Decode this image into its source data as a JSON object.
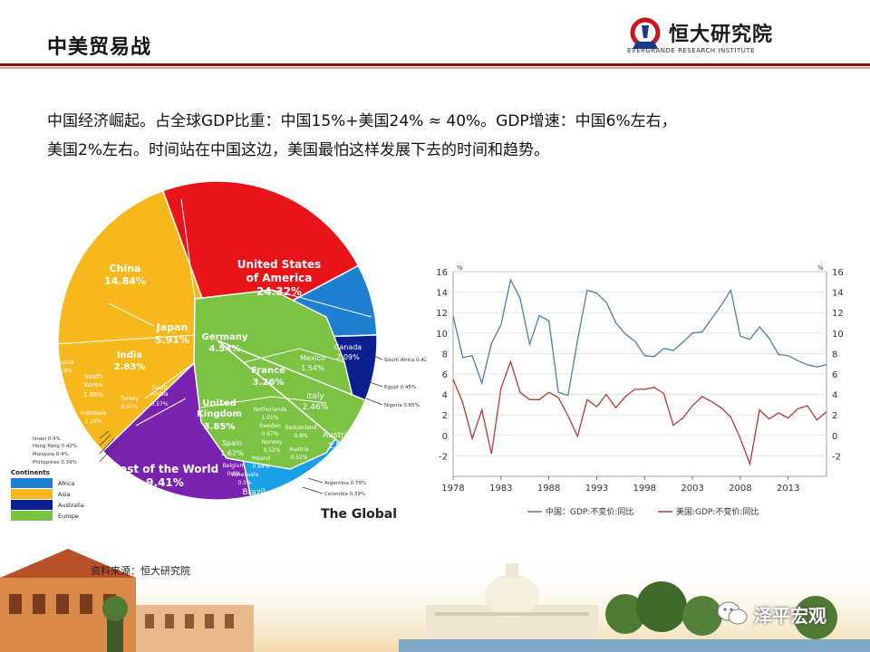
{
  "header": {
    "title": "中美贸易战",
    "logo_cn": "恒大研究院",
    "logo_en": "EVERGRANDE RESEARCH INSTITUTE"
  },
  "summary": {
    "line1": "中国经济崛起。占全球GDP比重：中国15%+美国24%  ≈ 40%。GDP增速：中国6%左右，",
    "line2": "美国2%左右。时间站在中国这边，美国最怕这样发展下去的时间和趋势。"
  },
  "footer": {
    "source": "资料来源：恒大研究院",
    "wechat": "泽平宏观"
  },
  "colors": {
    "accent_dark_red": "#7b1a12",
    "asia": "#f6b81a",
    "america": "#e8141a",
    "europe": "#7cc243",
    "australia": "#0b1f8f",
    "africa": "#1f7fd1",
    "rest": "#7a22b0",
    "china_line": "#4c7fa3",
    "us_line": "#b23a3a"
  },
  "chart_data": [
    {
      "type": "pie",
      "title": "The Global",
      "legend_title": "Continents",
      "legend": [
        "Africa",
        "Asia",
        "Australia",
        "Europe"
      ],
      "slices": [
        {
          "label": "United States of America",
          "value": "24.32%",
          "region": "america"
        },
        {
          "label": "Canada",
          "value": "2.09%",
          "region": "america"
        },
        {
          "label": "Mexico",
          "value": "1.54%",
          "region": "america"
        },
        {
          "label": "China",
          "value": "14.84%",
          "region": "asia"
        },
        {
          "label": "Japan",
          "value": "5.91%",
          "region": "asia"
        },
        {
          "label": "India",
          "value": "2.83%",
          "region": "asia"
        },
        {
          "label": "South Korea",
          "value": "1.86%",
          "region": "asia"
        },
        {
          "label": "Turkey",
          "value": "0.97%",
          "region": "asia"
        },
        {
          "label": "Indonesia",
          "value": "1.16%",
          "region": "asia"
        },
        {
          "label": "Russia",
          "value": "1.8%",
          "region": "asia"
        },
        {
          "label": "Saudi Arabia",
          "value": "0.57%",
          "region": "asia"
        },
        {
          "label": "Germany",
          "value": "4.54%",
          "region": "europe"
        },
        {
          "label": "France",
          "value": "3.26%",
          "region": "europe"
        },
        {
          "label": "United Kingdom",
          "value": "3.85%",
          "region": "europe"
        },
        {
          "label": "Italy",
          "value": "2.46%",
          "region": "europe"
        },
        {
          "label": "Spain",
          "value": "1.62%",
          "region": "europe"
        },
        {
          "label": "Netherlands",
          "value": "1.01%",
          "region": "europe"
        },
        {
          "label": "Switzerland",
          "value": "0.9%",
          "region": "europe"
        },
        {
          "label": "Sweden",
          "value": "0.67%",
          "region": "europe"
        },
        {
          "label": "Norway",
          "value": "0.52%",
          "region": "europe"
        },
        {
          "label": "Poland",
          "value": "0.64%",
          "region": "europe"
        },
        {
          "label": "Belgium",
          "value": "0.6%",
          "region": "europe"
        },
        {
          "label": "Austria",
          "value": "0.52%",
          "region": "europe"
        },
        {
          "label": "Australia",
          "value": "1.81%",
          "region": "australia"
        },
        {
          "label": "Brazil",
          "value": "2.39%",
          "region": "america"
        },
        {
          "label": "Venezuela",
          "value": "0.5%",
          "region": "america"
        },
        {
          "label": "Rest of the World",
          "value": "9.41%",
          "region": "rest"
        }
      ],
      "callouts": [
        {
          "label": "South Africa",
          "value": "0.42%"
        },
        {
          "label": "Egypt",
          "value": "0.45%"
        },
        {
          "label": "Nigeria",
          "value": "0.65%"
        },
        {
          "label": "Argentina",
          "value": "0.79%"
        },
        {
          "label": "Colombia",
          "value": "0.39%"
        },
        {
          "label": "Israel",
          "value": "0.4%"
        },
        {
          "label": "Hong Kong",
          "value": "0.42%"
        },
        {
          "label": "Malaysia",
          "value": "0.4%"
        },
        {
          "label": "Philippines",
          "value": "0.39%"
        }
      ]
    },
    {
      "type": "line",
      "x_ticks": [
        1978,
        1983,
        1988,
        1993,
        1998,
        2003,
        2008,
        2013
      ],
      "xlim": [
        1978,
        2017
      ],
      "ylim": [
        -4,
        16
      ],
      "y_ticks": [
        -2,
        0,
        2,
        4,
        6,
        8,
        10,
        12,
        14,
        16
      ],
      "ylabel_left": "%",
      "ylabel_right": "%",
      "grid": true,
      "legend_position": "bottom",
      "series": [
        {
          "name": "中国：GDP:不变价:同比",
          "x": [
            1978,
            1979,
            1980,
            1981,
            1982,
            1983,
            1984,
            1985,
            1986,
            1987,
            1988,
            1989,
            1990,
            1991,
            1992,
            1993,
            1994,
            1995,
            1996,
            1997,
            1998,
            1999,
            2000,
            2001,
            2002,
            2003,
            2004,
            2005,
            2006,
            2007,
            2008,
            2009,
            2010,
            2011,
            2012,
            2013,
            2014,
            2015,
            2016,
            2017
          ],
          "values": [
            11.7,
            7.6,
            7.8,
            5.1,
            9.0,
            10.8,
            15.2,
            13.4,
            8.9,
            11.7,
            11.2,
            4.2,
            3.9,
            9.3,
            14.2,
            13.9,
            13.0,
            11.0,
            9.9,
            9.2,
            7.8,
            7.7,
            8.5,
            8.3,
            9.1,
            10.0,
            10.1,
            11.4,
            12.7,
            14.2,
            9.7,
            9.4,
            10.6,
            9.5,
            7.9,
            7.8,
            7.3,
            6.9,
            6.7,
            6.9
          ]
        },
        {
          "name": "美国:GDP:不变价:同比",
          "x": [
            1978,
            1979,
            1980,
            1981,
            1982,
            1983,
            1984,
            1985,
            1986,
            1987,
            1988,
            1989,
            1990,
            1991,
            1992,
            1993,
            1994,
            1995,
            1996,
            1997,
            1998,
            1999,
            2000,
            2001,
            2002,
            2003,
            2004,
            2005,
            2006,
            2007,
            2008,
            2009,
            2010,
            2011,
            2012,
            2013,
            2014,
            2015,
            2016,
            2017
          ],
          "values": [
            5.5,
            3.2,
            -0.3,
            2.5,
            -1.8,
            4.6,
            7.2,
            4.2,
            3.5,
            3.5,
            4.2,
            3.7,
            1.9,
            -0.1,
            3.5,
            2.8,
            4.0,
            2.7,
            3.8,
            4.5,
            4.5,
            4.7,
            4.1,
            1.0,
            1.7,
            2.9,
            3.8,
            3.3,
            2.7,
            1.8,
            -0.3,
            -2.8,
            2.5,
            1.6,
            2.2,
            1.7,
            2.6,
            2.9,
            1.5,
            2.3
          ]
        }
      ]
    }
  ]
}
